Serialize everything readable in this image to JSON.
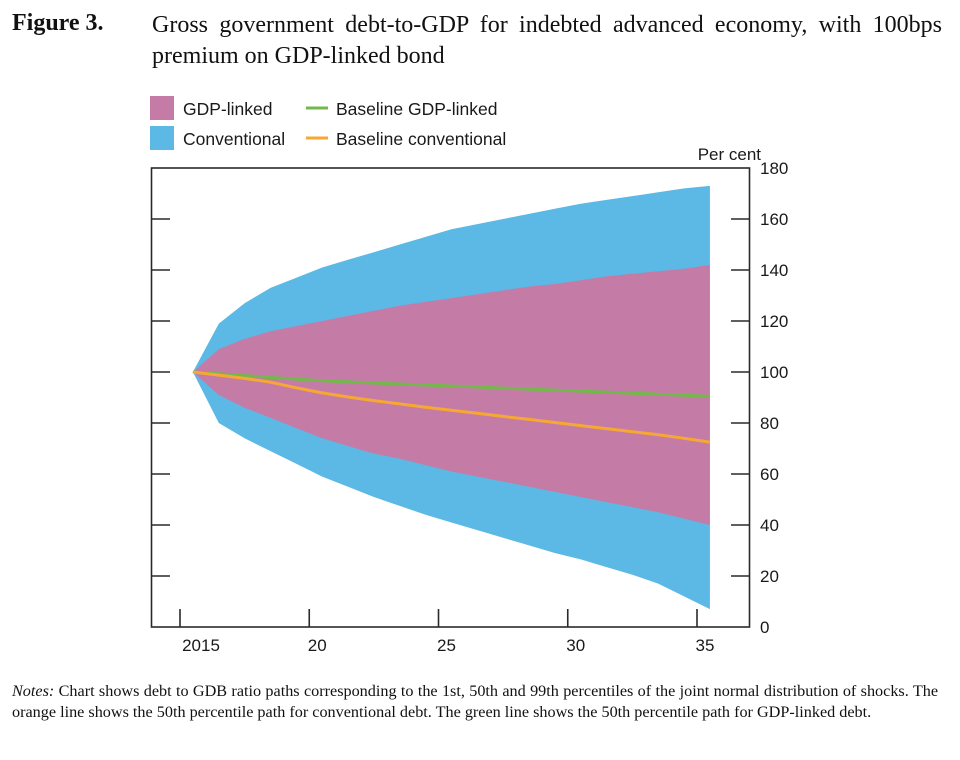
{
  "figure": {
    "label": "Figure 3.",
    "title": "Gross government debt-to-GDP for indebted advanced economy, with 100bps premium on GDP-linked bond",
    "notes_label": "Notes:",
    "notes_text": " Chart shows debt to GDB ratio paths corresponding to the 1st, 50th and 99th percentiles of the joint normal distribution of shocks.  The orange line shows the 50th percentile path for conventional debt.  The green line shows the 50th percentile path for GDP-linked debt."
  },
  "chart_data": {
    "type": "area",
    "title": "Gross government debt-to-GDP for indebted advanced economy, with 100bps premium on GDP-linked bond",
    "xlabel": "",
    "ylabel": "Per cent",
    "ylabel_position": "top-right",
    "y_axis_side": "right",
    "ylim": [
      0,
      180
    ],
    "yticks": [
      0,
      20,
      40,
      60,
      80,
      100,
      120,
      140,
      160,
      180
    ],
    "ytick_labels": [
      "0",
      "20",
      "40",
      "60",
      "80",
      "100",
      "120",
      "140",
      "160",
      "180"
    ],
    "xlim": [
      2014.5,
      2036.5
    ],
    "xticks": [
      2015,
      2020,
      2025,
      2030,
      2035
    ],
    "xtick_labels": [
      "2015",
      "20",
      "25",
      "30",
      "35"
    ],
    "grid": false,
    "legend_position": "top-left",
    "legend": [
      {
        "label": "GDP-linked",
        "kind": "band",
        "color": "#c47ca7"
      },
      {
        "label": "Conventional",
        "kind": "band",
        "color": "#5cb8e4"
      },
      {
        "label": "Baseline GDP-linked",
        "kind": "line",
        "color": "#72b84a"
      },
      {
        "label": "Baseline conventional",
        "kind": "line",
        "color": "#f7a833"
      }
    ],
    "x": [
      2015.5,
      2016.5,
      2017.5,
      2018.5,
      2019.5,
      2020.5,
      2021.5,
      2022.5,
      2023.5,
      2024.5,
      2025.5,
      2026.5,
      2027.5,
      2028.5,
      2029.5,
      2030.5,
      2031.5,
      2032.5,
      2033.5,
      2034.5,
      2035.5
    ],
    "bands": [
      {
        "name": "Conventional",
        "color": "#5cb8e4",
        "upper": [
          100,
          119,
          127,
          133,
          137,
          141,
          144,
          147,
          150,
          153,
          156,
          158,
          160,
          162,
          164,
          166,
          167.5,
          169,
          170.5,
          172,
          173
        ],
        "lower": [
          100,
          80,
          74,
          69,
          64,
          59,
          55,
          51,
          47.5,
          44,
          41,
          38,
          35,
          32,
          29,
          26.5,
          23.5,
          20.5,
          17,
          12,
          7
        ]
      },
      {
        "name": "GDP-linked",
        "color": "#c47ca7",
        "upper": [
          100,
          109,
          113,
          116,
          118,
          120,
          122,
          124,
          126,
          127.5,
          129,
          130.5,
          132,
          133.5,
          134.5,
          136,
          137.5,
          138.5,
          139.5,
          140.5,
          142
        ],
        "lower": [
          100,
          91,
          86,
          82,
          78,
          74,
          71,
          68,
          66,
          63.5,
          61,
          59,
          57,
          55,
          53,
          51,
          49,
          47,
          45,
          42.5,
          40
        ]
      }
    ],
    "series": [
      {
        "name": "Baseline GDP-linked",
        "color": "#72b84a",
        "values": [
          100,
          99.3,
          98.6,
          97.9,
          97.2,
          96.6,
          96.1,
          95.7,
          95.3,
          94.9,
          94.5,
          94.1,
          93.7,
          93.3,
          92.9,
          92.5,
          92.1,
          91.7,
          91.3,
          90.9,
          90.5
        ]
      },
      {
        "name": "Baseline conventional",
        "color": "#f7a833",
        "values": [
          100,
          98.8,
          97.5,
          96,
          93.8,
          91.8,
          90.2,
          88.8,
          87.5,
          86.2,
          85,
          83.8,
          82.6,
          81.4,
          80.2,
          79,
          77.8,
          76.6,
          75.4,
          74,
          72.5
        ]
      }
    ]
  }
}
